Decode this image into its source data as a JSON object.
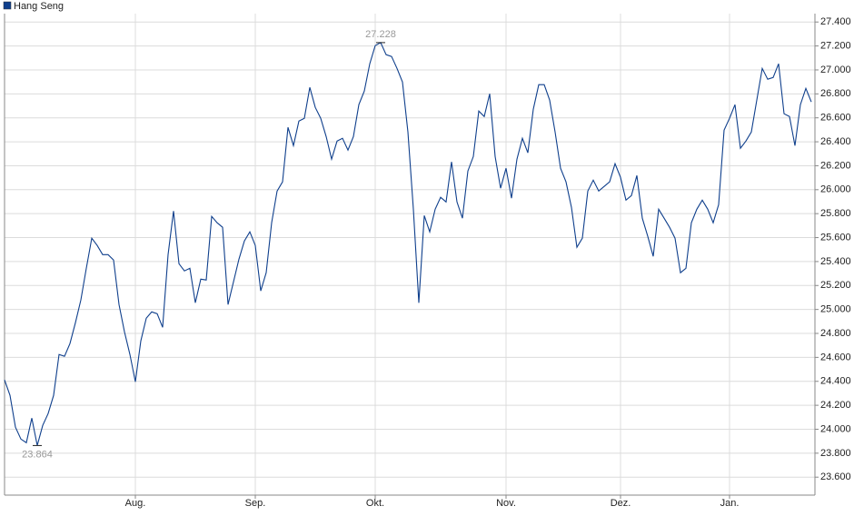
{
  "chart_data": {
    "type": "line",
    "legend": "top-left",
    "grid": true,
    "series": [
      {
        "name": "Hang Seng",
        "color": "#0f3f8c",
        "values": [
          24412,
          24283,
          24017,
          23918,
          23888,
          24093,
          23864,
          24032,
          24131,
          24283,
          24624,
          24609,
          24715,
          24889,
          25079,
          25344,
          25595,
          25534,
          25458,
          25458,
          25413,
          25041,
          24814,
          24624,
          24396,
          24738,
          24927,
          24980,
          24965,
          24851,
          25458,
          25822,
          25382,
          25322,
          25344,
          25056,
          25253,
          25246,
          25777,
          25724,
          25686,
          25041,
          25231,
          25420,
          25572,
          25648,
          25534,
          25155,
          25307,
          25724,
          25989,
          26065,
          26520,
          26368,
          26573,
          26596,
          26854,
          26687,
          26596,
          26444,
          26255,
          26406,
          26429,
          26331,
          26444,
          26710,
          26824,
          27051,
          27203,
          27228,
          27127,
          27112,
          27013,
          26899,
          26482,
          25837,
          25056,
          25784,
          25648,
          25837,
          25936,
          25898,
          26232,
          25898,
          25762,
          26156,
          26277,
          26657,
          26611,
          26801,
          26277,
          26012,
          26179,
          25929,
          26255,
          26429,
          26308,
          26672,
          26877,
          26877,
          26748,
          26482,
          26179,
          26065,
          25853,
          25519,
          25595,
          25989,
          26080,
          25989,
          26027,
          26065,
          26217,
          26103,
          25913,
          25951,
          26118,
          25762,
          25610,
          25443,
          25837,
          25762,
          25686,
          25595,
          25307,
          25344,
          25724,
          25837,
          25913,
          25837,
          25724,
          25875,
          26497,
          26596,
          26710,
          26346,
          26406,
          26482,
          26748,
          27013,
          26922,
          26937,
          27051,
          26634,
          26611,
          26368,
          26710,
          26846,
          26733
        ]
      }
    ],
    "categories": [
      null,
      null,
      null,
      null,
      null,
      null,
      null,
      null,
      null,
      null,
      null,
      null,
      null,
      null,
      null,
      null,
      null,
      null,
      null,
      null,
      null,
      null,
      null,
      null,
      "Aug.",
      null,
      null,
      null,
      null,
      null,
      null,
      null,
      null,
      null,
      null,
      null,
      null,
      null,
      null,
      null,
      null,
      null,
      null,
      null,
      null,
      null,
      "Sep.",
      null,
      null,
      null,
      null,
      null,
      null,
      null,
      null,
      null,
      null,
      null,
      null,
      null,
      null,
      null,
      null,
      null,
      null,
      null,
      null,
      null,
      "Okt.",
      null,
      null,
      null,
      null,
      null,
      null,
      null,
      null,
      null,
      null,
      null,
      null,
      null,
      null,
      null,
      null,
      null,
      null,
      null,
      null,
      null,
      null,
      null,
      "Nov.",
      null,
      null,
      null,
      null,
      null,
      null,
      null,
      null,
      null,
      null,
      null,
      null,
      null,
      null,
      null,
      null,
      null,
      null,
      null,
      null,
      "Dez.",
      null,
      null,
      null,
      null,
      null,
      null,
      null,
      null,
      null,
      null,
      null,
      null,
      null,
      null,
      null,
      null,
      null,
      null,
      null,
      "Jan.",
      null,
      null,
      null,
      null,
      null,
      null,
      null,
      null,
      null,
      null,
      null,
      null,
      null,
      null,
      null
    ],
    "ylim": [
      23450,
      27470
    ],
    "yticks": [
      {
        "value": 23600,
        "label": "23.600"
      },
      {
        "value": 23800,
        "label": "23.800"
      },
      {
        "value": 24000,
        "label": "24.000"
      },
      {
        "value": 24200,
        "label": "24.200"
      },
      {
        "value": 24400,
        "label": "24.400"
      },
      {
        "value": 24600,
        "label": "24.600"
      },
      {
        "value": 24800,
        "label": "24.800"
      },
      {
        "value": 25000,
        "label": "25.000"
      },
      {
        "value": 25200,
        "label": "25.200"
      },
      {
        "value": 25400,
        "label": "25.400"
      },
      {
        "value": 25600,
        "label": "25.600"
      },
      {
        "value": 25800,
        "label": "25.800"
      },
      {
        "value": 26000,
        "label": "26.000"
      },
      {
        "value": 26200,
        "label": "26.200"
      },
      {
        "value": 26400,
        "label": "26.400"
      },
      {
        "value": 26600,
        "label": "26.600"
      },
      {
        "value": 26800,
        "label": "26.800"
      },
      {
        "value": 27000,
        "label": "27.000"
      },
      {
        "value": 27200,
        "label": "27.200"
      },
      {
        "value": 27400,
        "label": "27.400"
      }
    ],
    "annotations": [
      {
        "value": 23864,
        "label": "23.864",
        "position": "below"
      },
      {
        "value": 27228,
        "label": "27.228",
        "position": "above"
      }
    ]
  }
}
